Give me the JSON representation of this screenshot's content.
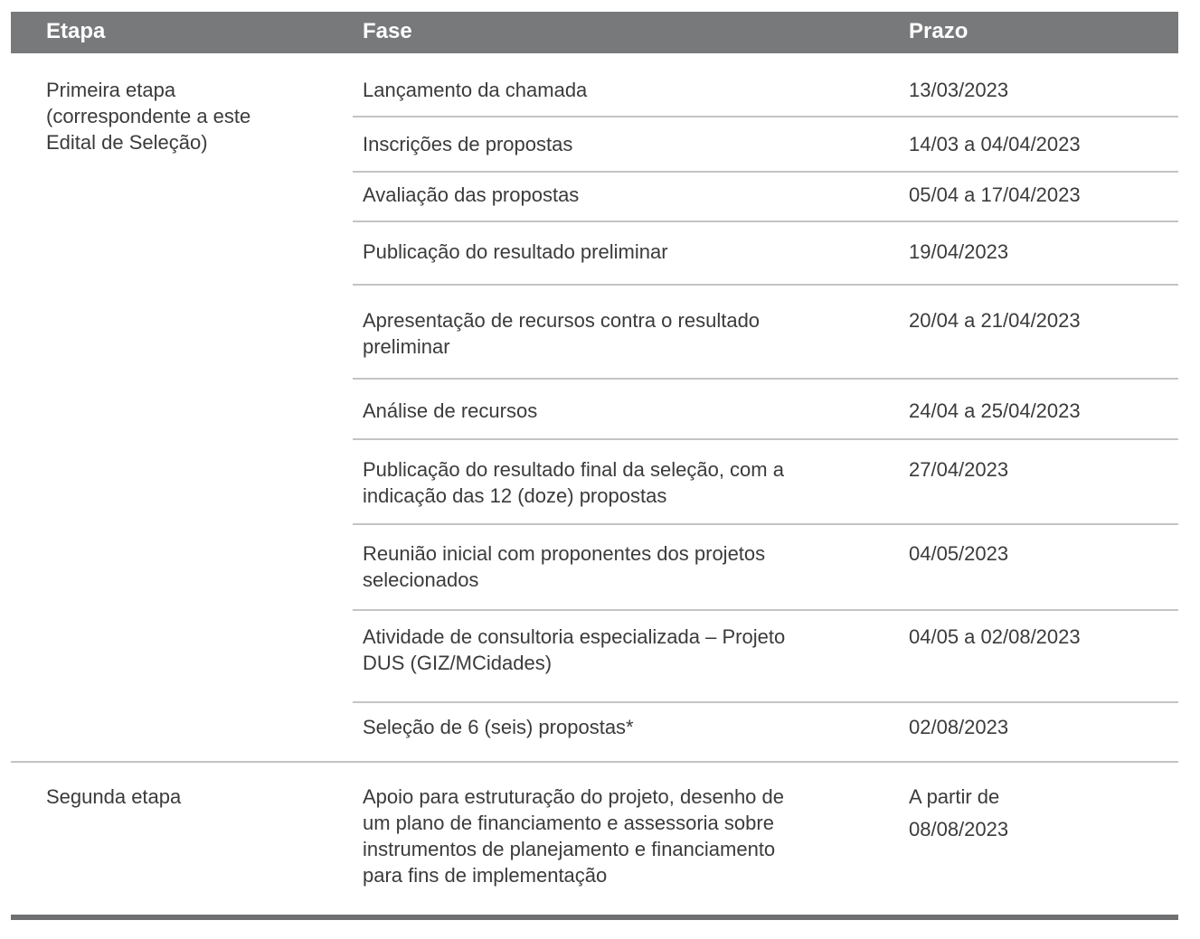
{
  "table": {
    "headers": {
      "etapa": "Etapa",
      "fase": "Fase",
      "prazo": "Prazo"
    },
    "groups": [
      {
        "etapa": "Primeira etapa\n(correspondente a este\nEdital de Seleção)",
        "rows": [
          {
            "fase": "Lançamento da chamada",
            "prazo": "13/03/2023"
          },
          {
            "fase": "Inscrições de propostas",
            "prazo": "14/03 a 04/04/2023"
          },
          {
            "fase": "Avaliação das propostas",
            "prazo": "05/04 a 17/04/2023"
          },
          {
            "fase": "Publicação do resultado preliminar",
            "prazo": "19/04/2023"
          },
          {
            "fase": "Apresentação de recursos contra o resultado\npreliminar",
            "prazo": "20/04 a 21/04/2023"
          },
          {
            "fase": "Análise de recursos",
            "prazo": "24/04 a 25/04/2023"
          },
          {
            "fase": "Publicação do resultado final da seleção, com a\nindicação das 12 (doze) propostas",
            "prazo": "27/04/2023"
          },
          {
            "fase": "Reunião inicial com proponentes dos projetos\nselecionados",
            "prazo": "04/05/2023"
          },
          {
            "fase": "Atividade de consultoria especializada – Projeto\nDUS (GIZ/MCidades)",
            "prazo": "04/05 a 02/08/2023"
          },
          {
            "fase": "Seleção de 6 (seis) propostas*",
            "prazo": "02/08/2023"
          }
        ]
      },
      {
        "etapa": "Segunda etapa",
        "rows": [
          {
            "fase": "Apoio para estruturação do projeto, desenho de\num plano de financiamento e assessoria sobre\ninstrumentos de planejamento e financiamento\npara fins de implementação",
            "prazo": "A partir de\n08/08/2023"
          }
        ]
      }
    ]
  },
  "colors": {
    "header_bg": "#78797b",
    "text": "#3b3b3b",
    "rule": "#c4c4c4"
  }
}
